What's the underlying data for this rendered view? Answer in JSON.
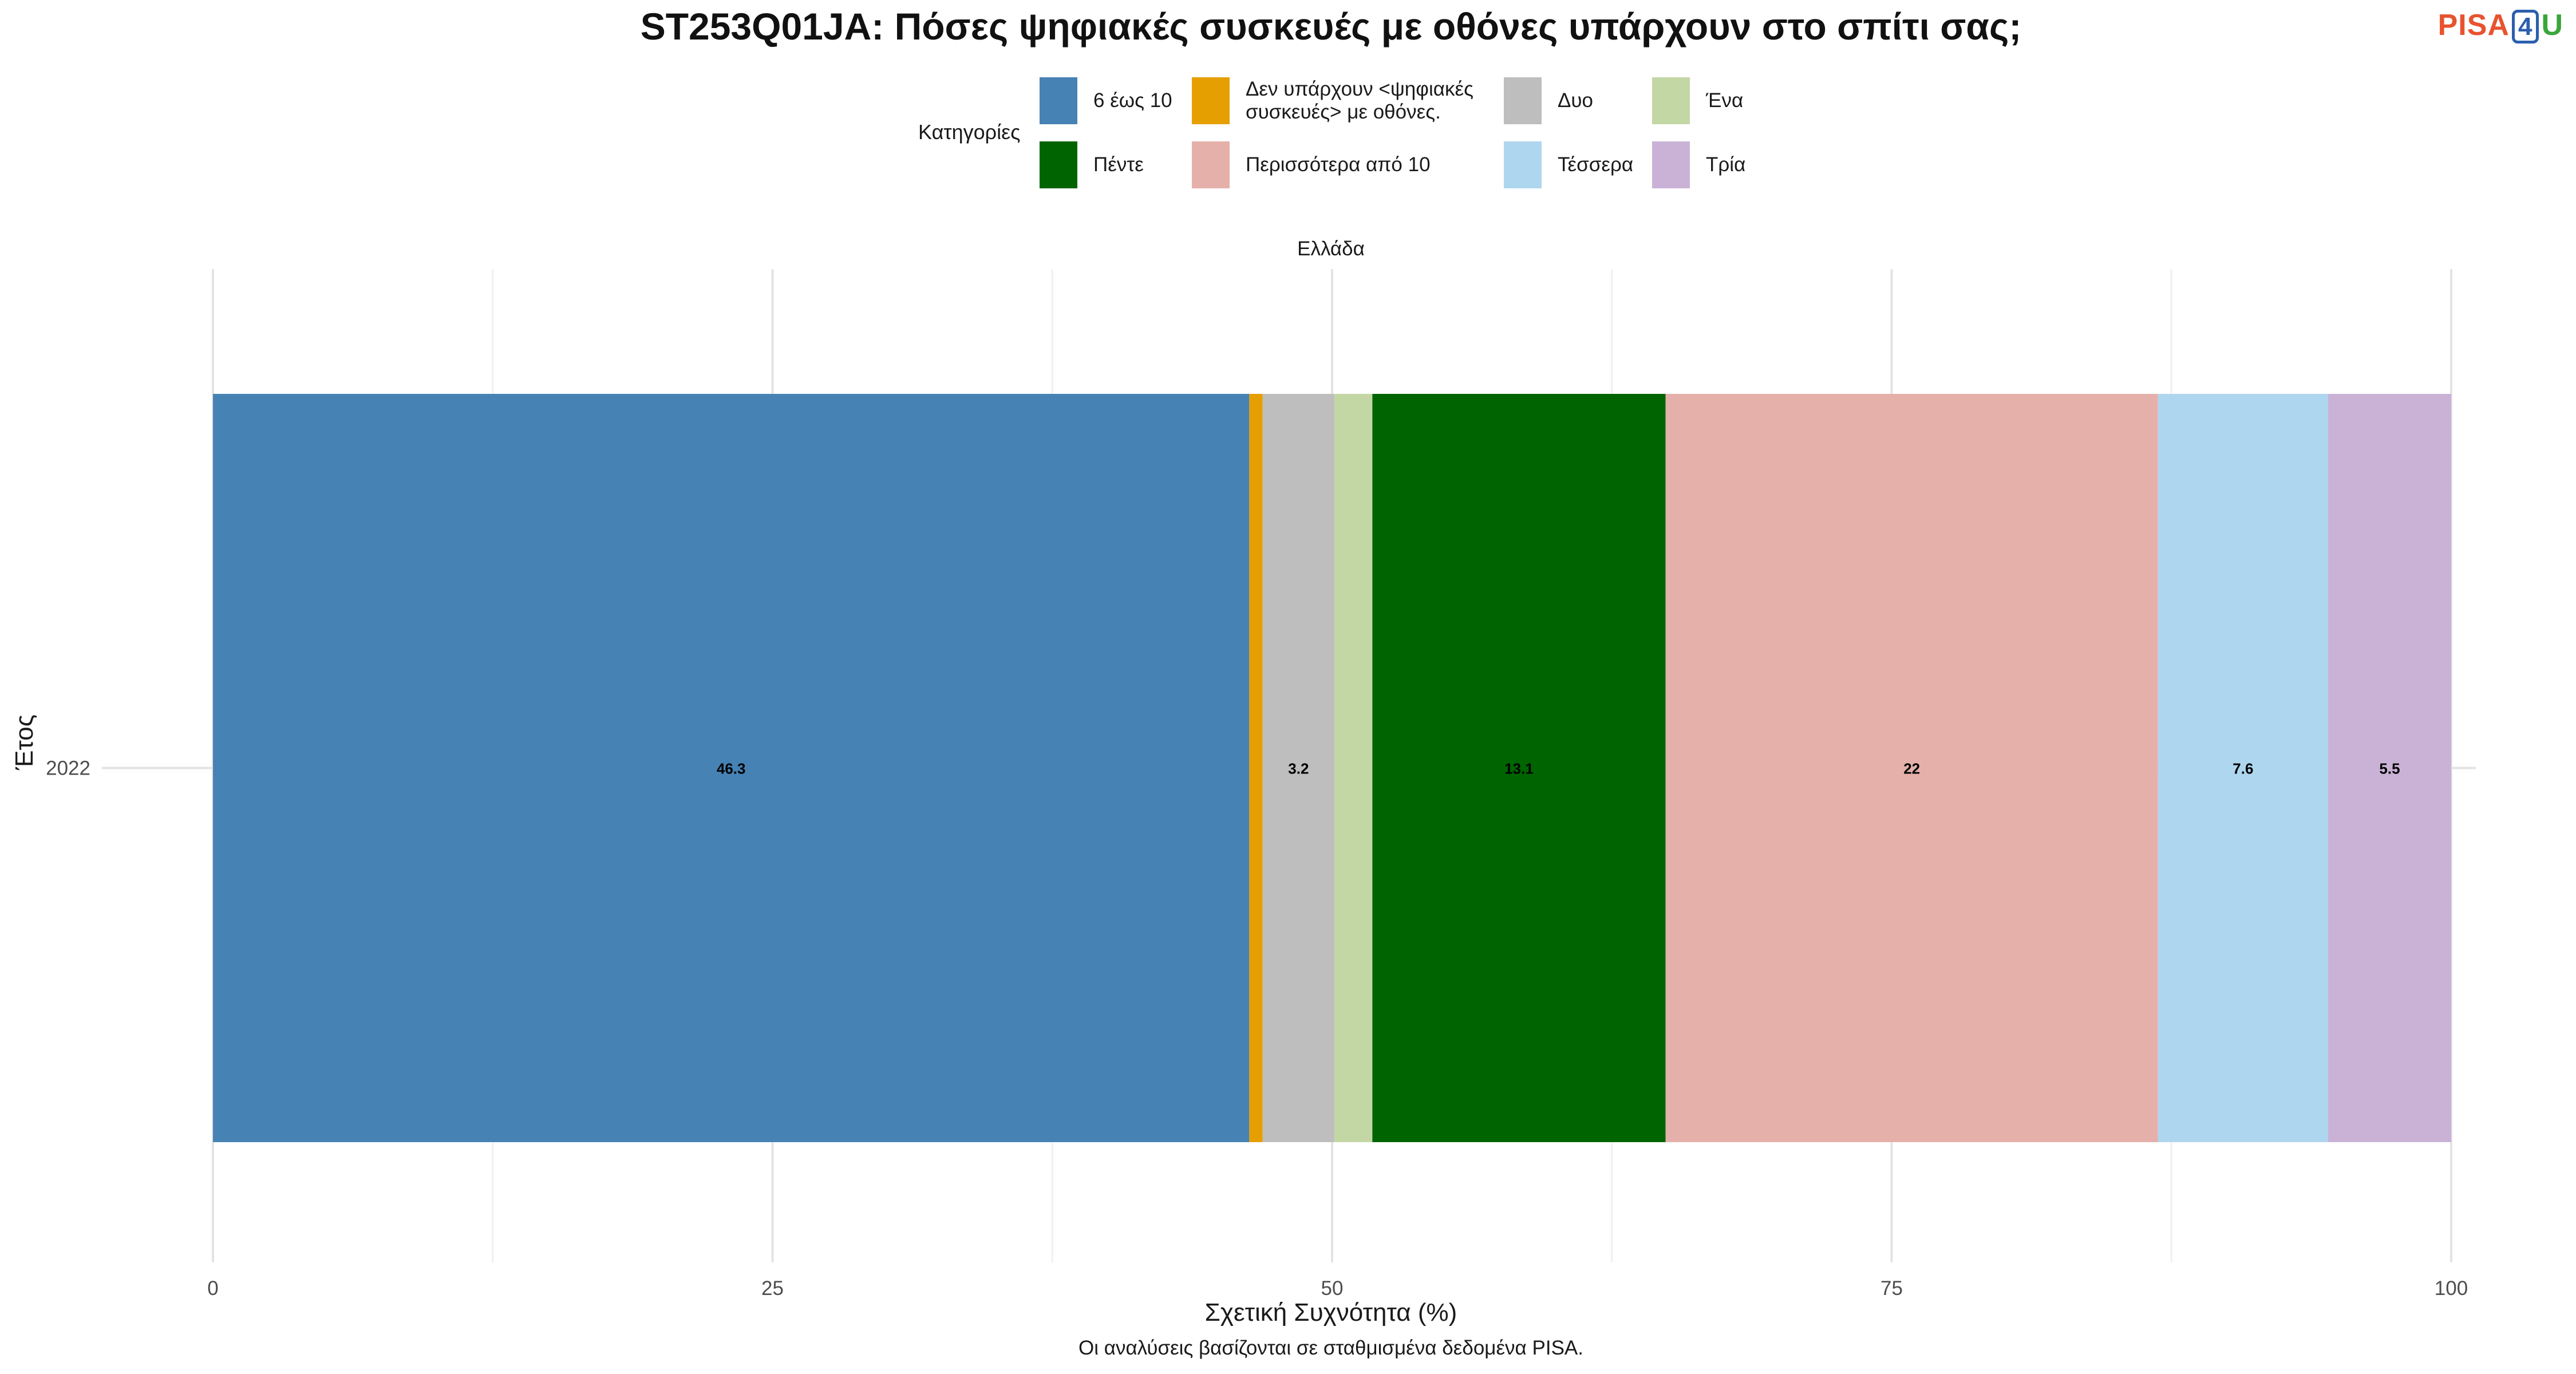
{
  "chart_data": {
    "type": "bar",
    "orientation": "horizontal",
    "stacked": true,
    "title": "ST253Q01JA: Πόσες ψηφιακές συσκευές με οθόνες υπάρχουν στο σπίτι σας;",
    "facet": "Ελλάδα",
    "xlabel": "Σχετική Συχνότητα (%)",
    "ylabel": "Έτος",
    "xlim": [
      0,
      100
    ],
    "x_ticks": [
      0,
      25,
      50,
      75,
      100
    ],
    "categories": [
      "2022"
    ],
    "legend_title": "Κατηγορίες",
    "legend_position": "top",
    "series": [
      {
        "name": "6 έως 10",
        "color": "#4682b4",
        "values": [
          46.3
        ],
        "label": "46.3"
      },
      {
        "name": "Δεν υπάρχουν <ψηφιακές συσκευές> με οθόνες.",
        "color": "#e69f00",
        "values": [
          0.6
        ],
        "label": ""
      },
      {
        "name": "Δυο",
        "color": "#bebebe",
        "values": [
          3.2
        ],
        "label": "3.2"
      },
      {
        "name": "Ένα",
        "color": "#c3d7a5",
        "values": [
          1.7
        ],
        "label": ""
      },
      {
        "name": "Πέντε",
        "color": "#006400",
        "values": [
          13.1
        ],
        "label": "13.1"
      },
      {
        "name": "Περισσότερα από 10",
        "color": "#e5b0aa",
        "values": [
          22.0
        ],
        "label": "22"
      },
      {
        "name": "Τέσσερα",
        "color": "#afd6ef",
        "values": [
          7.6
        ],
        "label": "7.6"
      },
      {
        "name": "Τρία",
        "color": "#cab2d6",
        "values": [
          5.5
        ],
        "label": "5.5"
      }
    ],
    "grid": true,
    "caption": "Οι αναλύσεις βασίζονται σε σταθμισμένα δεδομένα PISA."
  },
  "legend": [
    {
      "label": "6 έως 10",
      "color": "#4682b4"
    },
    {
      "label": "Δεν υπάρχουν <ψηφιακές\nσυσκευές> με οθόνες.",
      "color": "#e69f00"
    },
    {
      "label": "Δυο",
      "color": "#bebebe"
    },
    {
      "label": "Ένα",
      "color": "#c3d7a5"
    },
    {
      "label": "Πέντε",
      "color": "#006400"
    },
    {
      "label": "Περισσότερα από 10",
      "color": "#e5b0aa"
    },
    {
      "label": "Τέσσερα",
      "color": "#afd6ef"
    },
    {
      "label": "Τρία",
      "color": "#cab2d6"
    }
  ],
  "logo": {
    "part1": "PISA",
    "part2": "4",
    "part3": "U"
  }
}
